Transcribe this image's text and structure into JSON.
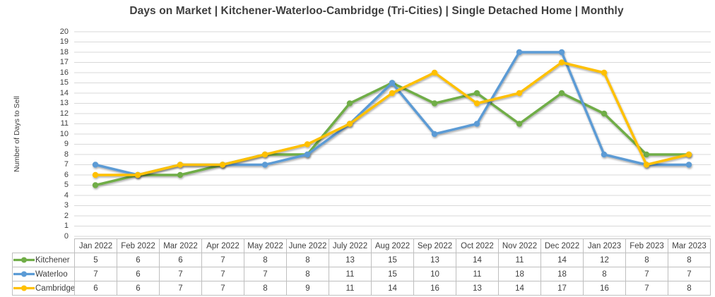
{
  "chart_data": {
    "type": "line",
    "title": "Days on Market | Kitchener-Waterloo-Cambridge (Tri-Cities) | Single Detached Home | Monthly",
    "xlabel": "",
    "ylabel": "Number of Days to Sell",
    "ylim": [
      0,
      20
    ],
    "ytick_step": 1,
    "grid": true,
    "marker": "circle",
    "data_table_shown": true,
    "legend_position": "data-table-left",
    "categories": [
      "Jan 2022",
      "Feb 2022",
      "Mar 2022",
      "Apr 2022",
      "May 2022",
      "June 2022",
      "July 2022",
      "Aug 2022",
      "Sep 2022",
      "Oct 2022",
      "Nov 2022",
      "Dec 2022",
      "Jan 2023",
      "Feb 2023",
      "Mar 2023"
    ],
    "series": [
      {
        "name": "Kitchener",
        "color": "#70AD47",
        "values": [
          5,
          6,
          6,
          7,
          8,
          8,
          13,
          15,
          13,
          14,
          11,
          14,
          12,
          8,
          8
        ]
      },
      {
        "name": "Waterloo",
        "color": "#5B9BD5",
        "values": [
          7,
          6,
          7,
          7,
          7,
          8,
          11,
          15,
          10,
          11,
          18,
          18,
          8,
          7,
          7
        ]
      },
      {
        "name": "Cambridge",
        "color": "#FFC000",
        "values": [
          6,
          6,
          7,
          7,
          8,
          9,
          11,
          14,
          16,
          13,
          14,
          17,
          16,
          7,
          8
        ]
      }
    ]
  },
  "colors": {
    "background": "#FFFFFF",
    "gridline": "#D9D9D9",
    "title_text": "#3F3F3F",
    "axis_text": "#404040",
    "table_border": "#BFBFBF",
    "table_text": "#404040"
  }
}
